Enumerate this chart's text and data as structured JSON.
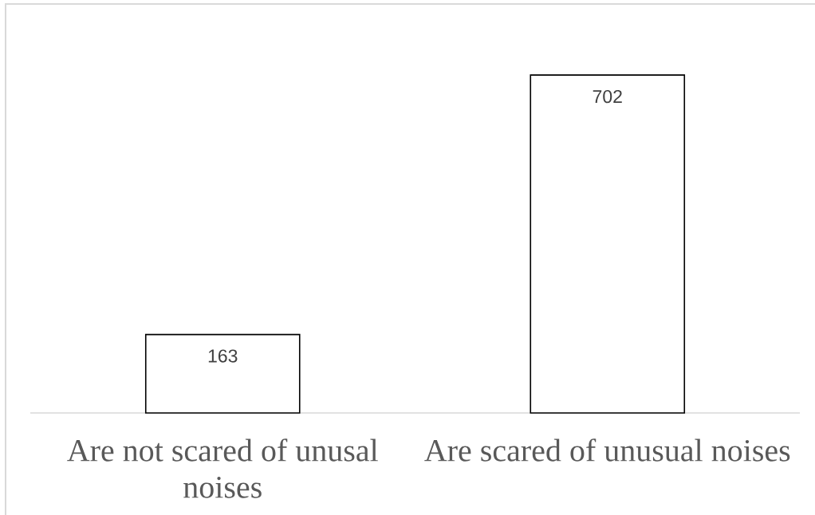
{
  "chart_data": {
    "type": "bar",
    "categories": [
      "Are not scared of unusal noises",
      "Are scared of unusual noises"
    ],
    "values": [
      163,
      702
    ],
    "color": "#ffffff",
    "data_labels": true
  }
}
